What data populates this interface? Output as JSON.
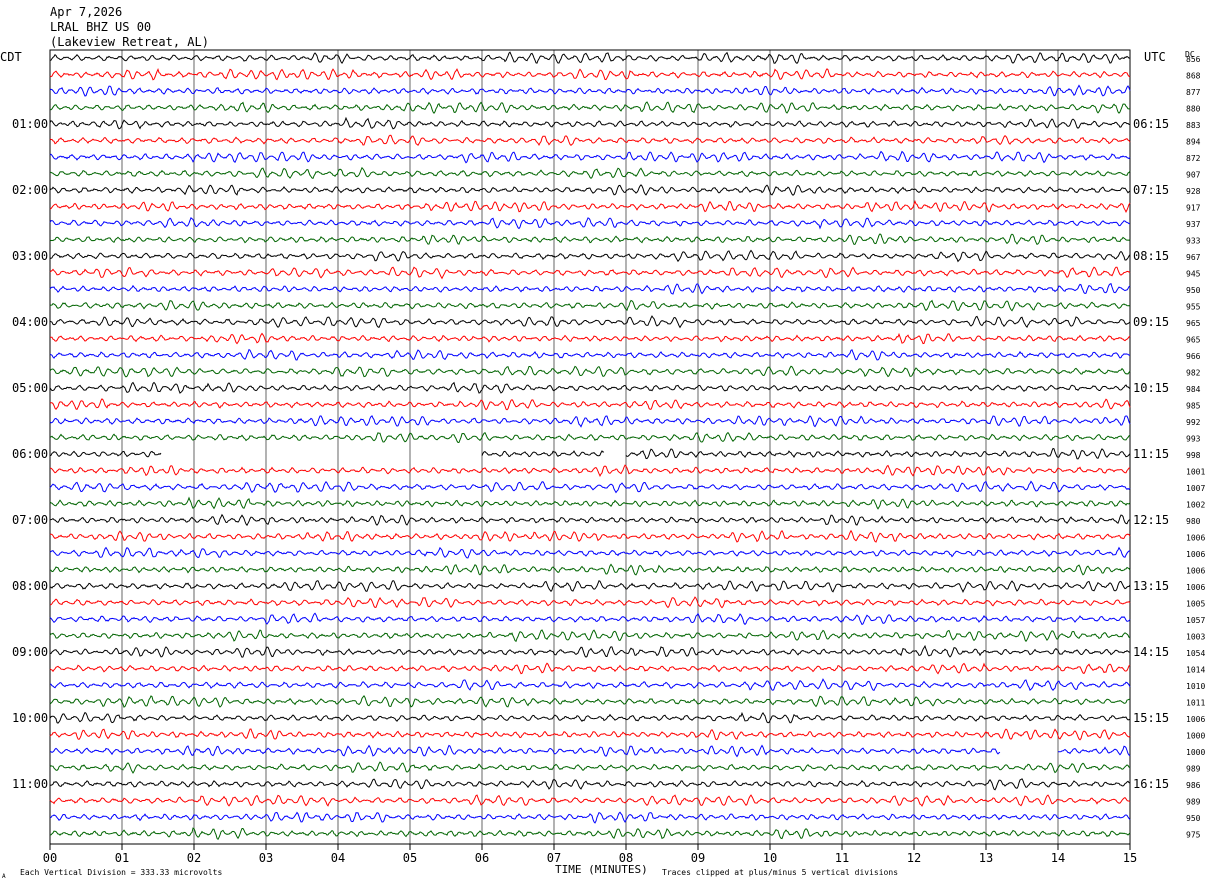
{
  "header": {
    "date": "Apr 7,2026",
    "station": "LRAL BHZ US 00",
    "location": "(Lakeview Retreat, AL)"
  },
  "left_timezone": "CDT",
  "right_timezone": "UTC",
  "dc_label": "DC",
  "footer": {
    "scale_note": "Each Vertical Division =  333.33 microvolts",
    "xlabel": "TIME (MINUTES)",
    "clip_note": "Traces clipped at plus/minus 5 vertical divisions",
    "corner_mark": "A"
  },
  "chart_data": {
    "type": "line",
    "xlabel": "TIME (MINUTES)",
    "xlim": [
      0,
      15
    ],
    "x_ticks": [
      "00",
      "01",
      "02",
      "03",
      "04",
      "05",
      "06",
      "07",
      "08",
      "09",
      "10",
      "11",
      "12",
      "13",
      "14",
      "15"
    ],
    "trace_colors": [
      "#000000",
      "#ff0000",
      "#0000ff",
      "#006400"
    ],
    "traces_per_hour": 4,
    "hour_labels_local": [
      "01:00",
      "02:00",
      "03:00",
      "04:00",
      "05:00",
      "06:00",
      "07:00",
      "08:00",
      "09:00",
      "10:00",
      "11:00"
    ],
    "hour_labels_utc": [
      "06:15",
      "07:15",
      "08:15",
      "09:15",
      "10:15",
      "11:15",
      "12:15",
      "13:15",
      "14:15",
      "15:15",
      "16:15"
    ],
    "dc_offsets": [
      "856",
      "868",
      "877",
      "880",
      "883",
      "894",
      "872",
      "907",
      "928",
      "917",
      "937",
      "933",
      "967",
      "945",
      "950",
      "955",
      "965",
      "965",
      "966",
      "982",
      "984",
      "985",
      "992",
      "993",
      "998",
      "1001",
      "1007",
      "1002",
      "980",
      "1006",
      "1006",
      "1006",
      "1006",
      "1005",
      "1057",
      "1003",
      "1054",
      "1014",
      "1010",
      "1011",
      "1006",
      "1000",
      "1000",
      "989",
      "986",
      "989",
      "950",
      "975"
    ],
    "gaps": [
      {
        "row": 24,
        "from_min": 1.55,
        "to_min": 6.0
      },
      {
        "row": 24,
        "from_min": 7.7,
        "to_min": 8.0
      },
      {
        "row": 42,
        "from_min": 13.2,
        "to_min": 14.0
      }
    ]
  }
}
